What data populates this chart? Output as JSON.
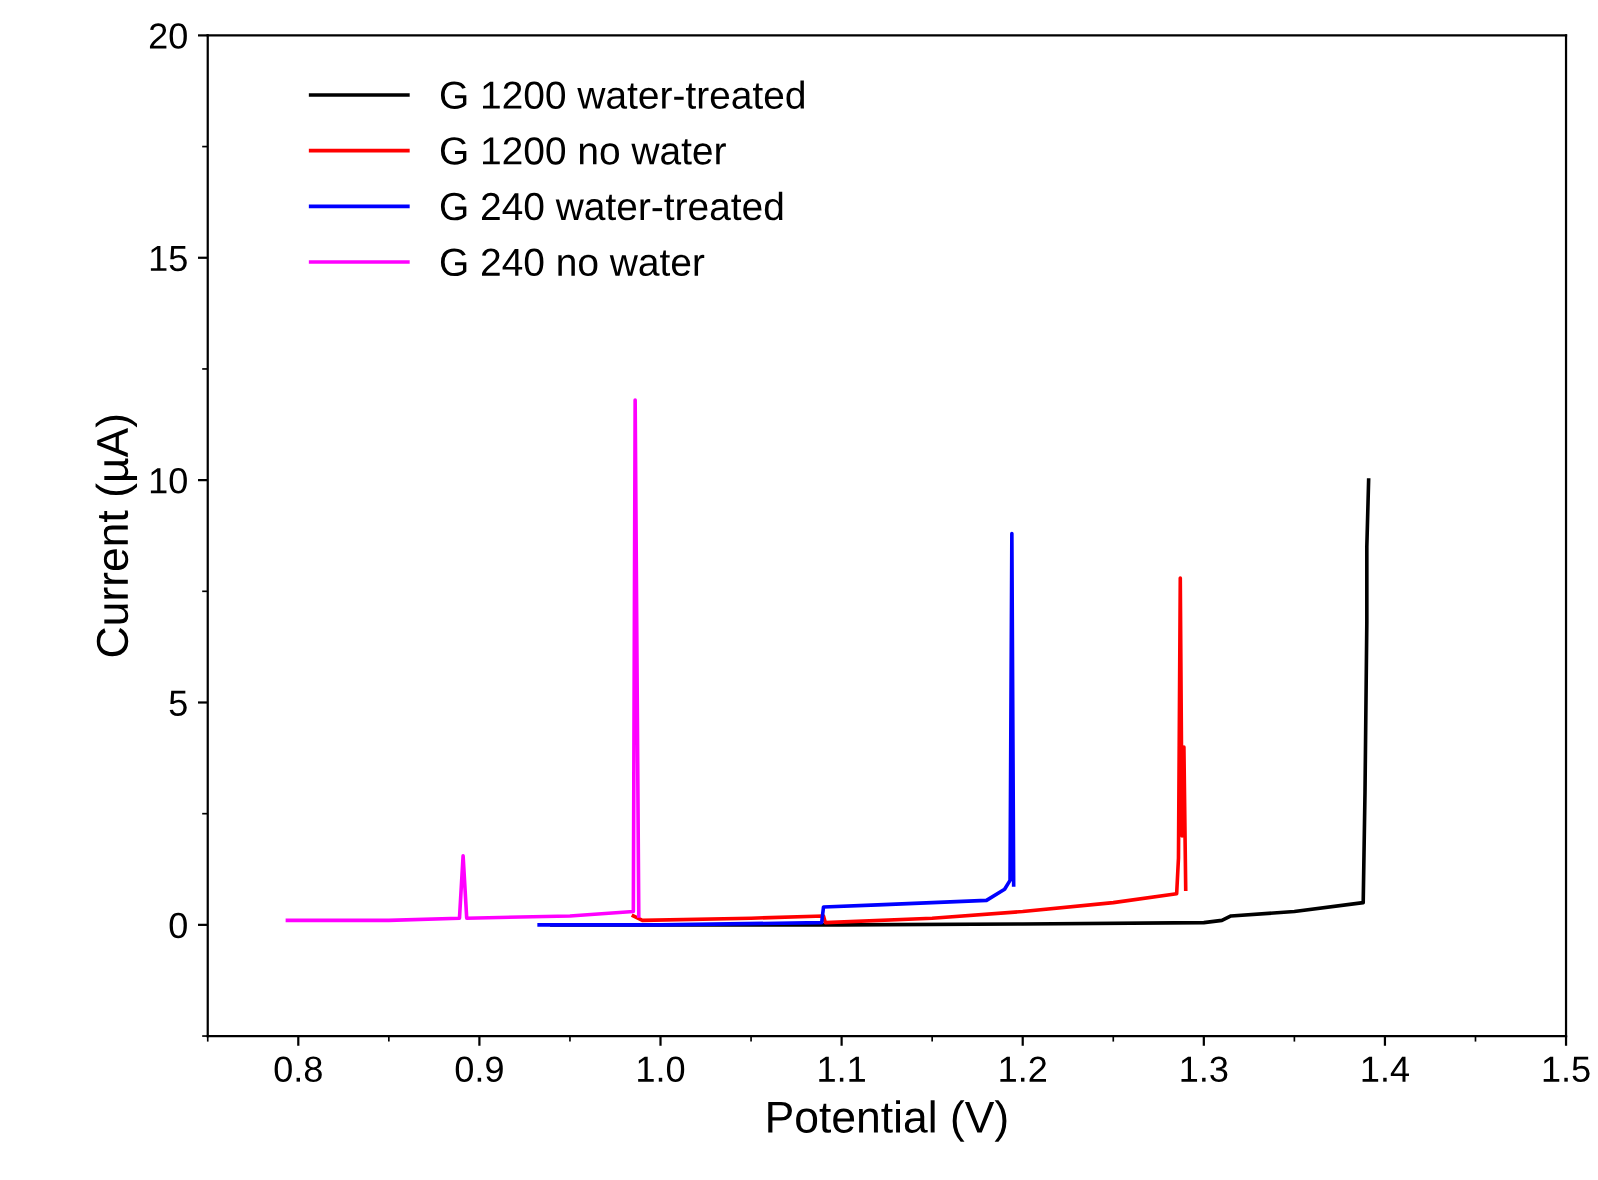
{
  "chart_data": {
    "type": "line",
    "xlabel": "Potential (V)",
    "ylabel": "Current (µA)",
    "xlim": [
      0.75,
      1.5
    ],
    "xticks": [
      0.8,
      0.9,
      {
        "value": 1,
        "label": "1.0"
      },
      1.1,
      1.2,
      1.3,
      1.4,
      1.5
    ],
    "ylim": [
      -2.5,
      20
    ],
    "yticks": [
      0,
      5,
      10,
      15,
      20
    ],
    "grid": false,
    "legend": "top left",
    "marker": "none",
    "line_style": "solid",
    "series": [
      {
        "name": "G 1200 water-treated",
        "color": "#000000",
        "x": [
          0.94,
          1.0,
          1.1,
          1.2,
          1.3,
          1.31,
          1.315,
          1.35,
          1.388,
          1.389,
          1.39,
          1.39,
          1.391
        ],
        "values": [
          0.0,
          0.0,
          0.0,
          0.02,
          0.05,
          0.1,
          0.2,
          0.3,
          0.5,
          3.0,
          6.8,
          8.5,
          10.0
        ]
      },
      {
        "name": "G 1200 no water",
        "color": "#ff0000",
        "x": [
          0.985,
          0.99,
          1.05,
          1.09,
          1.091,
          1.15,
          1.2,
          1.25,
          1.285,
          1.286,
          1.287,
          1.288,
          1.289,
          1.29
        ],
        "values": [
          0.2,
          0.1,
          0.15,
          0.2,
          0.05,
          0.15,
          0.3,
          0.5,
          0.7,
          1.5,
          7.8,
          2.0,
          4.0,
          0.8
        ]
      },
      {
        "name": "G 240 water-treated",
        "color": "#0000ff",
        "x": [
          0.933,
          1.0,
          1.089,
          1.09,
          1.12,
          1.18,
          1.19,
          1.193,
          1.194,
          1.195
        ],
        "values": [
          0.0,
          0.0,
          0.05,
          0.4,
          0.45,
          0.55,
          0.8,
          1.0,
          8.8,
          0.9
        ]
      },
      {
        "name": "G 240 no water",
        "color": "#ff00ff",
        "x": [
          0.794,
          0.85,
          0.889,
          0.891,
          0.893,
          0.95,
          0.985,
          0.986,
          0.987,
          0.988
        ],
        "values": [
          0.1,
          0.1,
          0.15,
          1.55,
          0.15,
          0.2,
          0.3,
          11.8,
          6.0,
          0.2
        ]
      }
    ]
  }
}
